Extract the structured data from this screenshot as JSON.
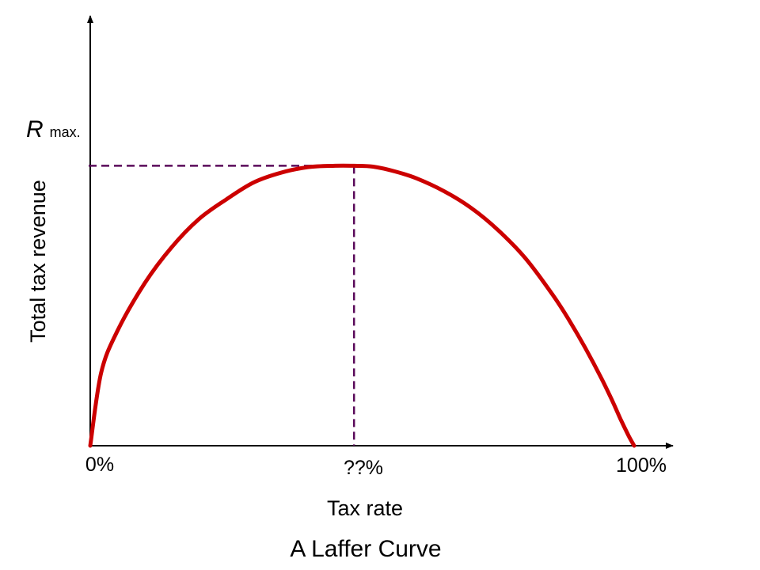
{
  "chart_data": {
    "type": "line",
    "title": "A Laffer Curve",
    "xlabel": "Tax rate",
    "ylabel": "Total tax revenue",
    "x_tick_labels": [
      "0%",
      "??%",
      "100%"
    ],
    "xlim": [
      0,
      100
    ],
    "ylim": [
      0,
      1.4
    ],
    "grid": false,
    "series": [
      {
        "x": [
          0,
          2,
          5,
          10,
          15,
          20,
          25,
          30,
          35,
          40,
          45,
          48.5,
          52,
          56,
          60,
          65,
          70,
          75,
          80,
          85,
          88,
          91,
          94,
          96,
          97.5,
          99,
          100
        ],
        "y": [
          0,
          0.26,
          0.41,
          0.58,
          0.71,
          0.81,
          0.88,
          0.94,
          0.975,
          0.995,
          1.0,
          1.0,
          0.997,
          0.98,
          0.955,
          0.91,
          0.85,
          0.77,
          0.67,
          0.54,
          0.45,
          0.35,
          0.24,
          0.16,
          0.095,
          0.035,
          0
        ]
      }
    ],
    "annotations": {
      "max_point": {
        "x": 48.5,
        "y": 1.0
      },
      "rmax_label": {
        "main": "R",
        "sub": "max."
      }
    },
    "colors": {
      "curve": "#cc0000",
      "guides": "#5a0a5a",
      "axes": "#000000"
    }
  }
}
